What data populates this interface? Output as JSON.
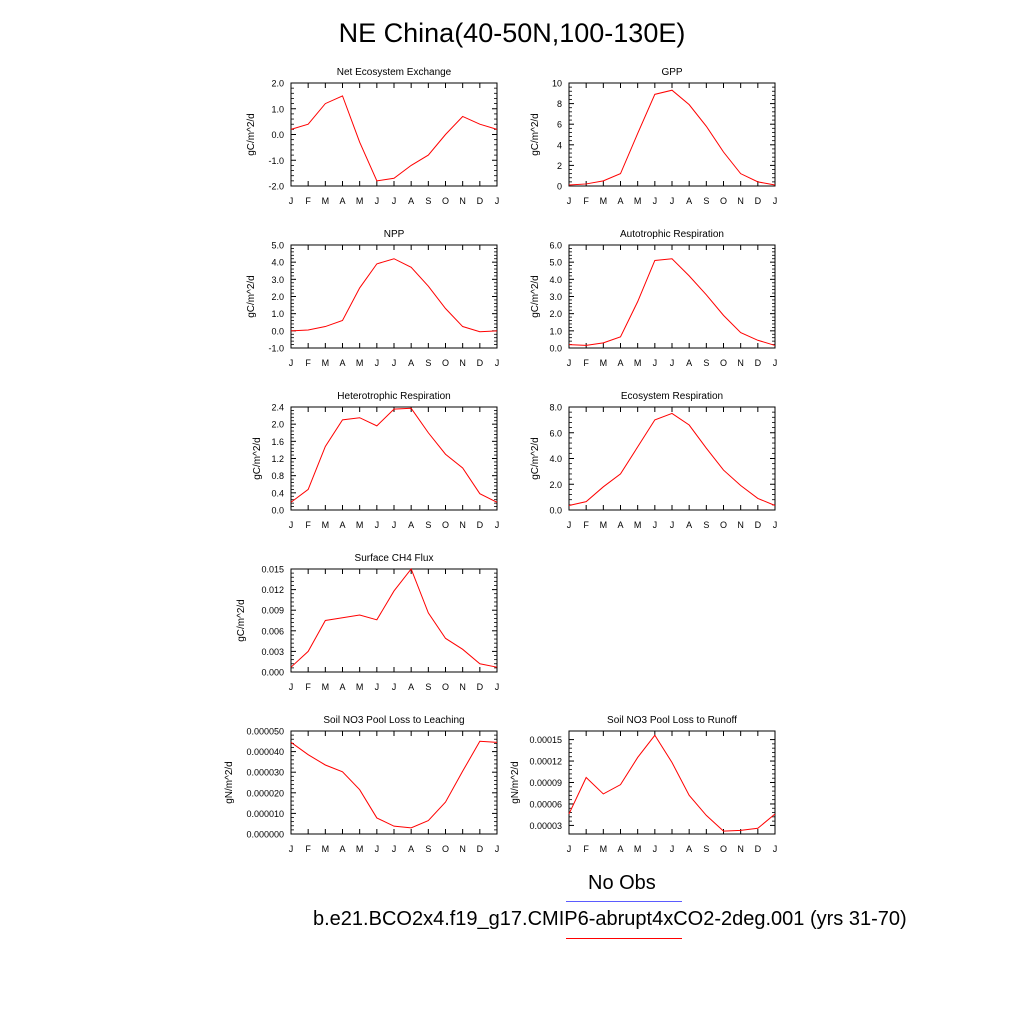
{
  "figure": {
    "title": "NE China(40-50N,100-130E)",
    "legend": [
      {
        "label": "No Obs",
        "color": "#5b5bff"
      },
      {
        "label": "b.e21.BCO2x4.f19_g17.CMIP6-abrupt4xCO2-2deg.001 (yrs 31-70)",
        "color": "#ff0000"
      }
    ],
    "series_color": "#ff0000"
  },
  "chart_data": [
    {
      "type": "line",
      "title": "Net Ecosystem Exchange",
      "ylabel": "gC/m^2/d",
      "categories": [
        "J",
        "F",
        "M",
        "A",
        "M",
        "J",
        "J",
        "A",
        "S",
        "O",
        "N",
        "D",
        "J"
      ],
      "ylim": [
        -2.0,
        2.0
      ],
      "yticks": [
        -2.0,
        -1.0,
        0.0,
        1.0,
        2.0
      ],
      "ytick_labels": [
        "-2.0",
        "-1.0",
        "0.0",
        "1.0",
        "2.0"
      ],
      "values": [
        0.2,
        0.4,
        1.2,
        1.5,
        -0.3,
        -1.8,
        -1.7,
        -1.2,
        -0.8,
        0.0,
        0.7,
        0.4,
        0.2
      ]
    },
    {
      "type": "line",
      "title": "GPP",
      "ylabel": "gC/m^2/d",
      "categories": [
        "J",
        "F",
        "M",
        "A",
        "M",
        "J",
        "J",
        "A",
        "S",
        "O",
        "N",
        "D",
        "J"
      ],
      "ylim": [
        0,
        10
      ],
      "yticks": [
        0,
        2,
        4,
        6,
        8,
        10
      ],
      "ytick_labels": [
        "0",
        "2",
        "4",
        "6",
        "8",
        "10"
      ],
      "values": [
        0.1,
        0.2,
        0.5,
        1.2,
        5.1,
        8.9,
        9.3,
        7.9,
        5.8,
        3.3,
        1.2,
        0.4,
        0.1
      ]
    },
    {
      "type": "line",
      "title": "NPP",
      "ylabel": "gC/m^2/d",
      "categories": [
        "J",
        "F",
        "M",
        "A",
        "M",
        "J",
        "J",
        "A",
        "S",
        "O",
        "N",
        "D",
        "J"
      ],
      "ylim": [
        -1.0,
        5.0
      ],
      "yticks": [
        -1.0,
        0.0,
        1.0,
        2.0,
        3.0,
        4.0,
        5.0
      ],
      "ytick_labels": [
        "-1.0",
        "0.0",
        "1.0",
        "2.0",
        "3.0",
        "4.0",
        "5.0"
      ],
      "values": [
        0.0,
        0.05,
        0.25,
        0.6,
        2.5,
        3.9,
        4.2,
        3.7,
        2.6,
        1.3,
        0.25,
        -0.05,
        0.0
      ]
    },
    {
      "type": "line",
      "title": "Autotrophic Respiration",
      "ylabel": "gC/m^2/d",
      "categories": [
        "J",
        "F",
        "M",
        "A",
        "M",
        "J",
        "J",
        "A",
        "S",
        "O",
        "N",
        "D",
        "J"
      ],
      "ylim": [
        0,
        6.0
      ],
      "yticks": [
        0,
        1.0,
        2.0,
        3.0,
        4.0,
        5.0,
        6.0
      ],
      "ytick_labels": [
        "0.0",
        "1.0",
        "2.0",
        "3.0",
        "4.0",
        "5.0",
        "6.0"
      ],
      "values": [
        0.2,
        0.15,
        0.3,
        0.65,
        2.7,
        5.1,
        5.2,
        4.2,
        3.1,
        1.9,
        0.9,
        0.45,
        0.15
      ]
    },
    {
      "type": "line",
      "title": "Heterotrophic Respiration",
      "ylabel": "gC/m^2/d",
      "categories": [
        "J",
        "F",
        "M",
        "A",
        "M",
        "J",
        "J",
        "A",
        "S",
        "O",
        "N",
        "D",
        "J"
      ],
      "ylim": [
        0,
        2.4
      ],
      "yticks": [
        0,
        0.4,
        0.8,
        1.2,
        1.6,
        2.0,
        2.4
      ],
      "ytick_labels": [
        "0.0",
        "0.4",
        "0.8",
        "1.2",
        "1.6",
        "2.0",
        "2.4"
      ],
      "values": [
        0.18,
        0.48,
        1.48,
        2.1,
        2.15,
        1.96,
        2.35,
        2.37,
        1.8,
        1.3,
        0.98,
        0.38,
        0.18
      ]
    },
    {
      "type": "line",
      "title": "Ecosystem Respiration",
      "ylabel": "gC/m^2/d",
      "categories": [
        "J",
        "F",
        "M",
        "A",
        "M",
        "J",
        "J",
        "A",
        "S",
        "O",
        "N",
        "D",
        "J"
      ],
      "ylim": [
        0,
        8.0
      ],
      "yticks": [
        0,
        2.0,
        4.0,
        6.0,
        8.0
      ],
      "ytick_labels": [
        "0.0",
        "2.0",
        "4.0",
        "6.0",
        "8.0"
      ],
      "values": [
        0.35,
        0.65,
        1.8,
        2.8,
        4.9,
        7.0,
        7.5,
        6.6,
        4.8,
        3.1,
        1.9,
        0.9,
        0.35
      ]
    },
    {
      "type": "line",
      "title": "Surface CH4 Flux",
      "ylabel": "gC/m^2/d",
      "categories": [
        "J",
        "F",
        "M",
        "A",
        "M",
        "J",
        "J",
        "A",
        "S",
        "O",
        "N",
        "D",
        "J"
      ],
      "ylim": [
        0,
        0.015
      ],
      "yticks": [
        0,
        0.003,
        0.006,
        0.009,
        0.012,
        0.015
      ],
      "ytick_labels": [
        "0.000",
        "0.003",
        "0.006",
        "0.009",
        "0.012",
        "0.015"
      ],
      "values": [
        0.0007,
        0.003,
        0.0075,
        0.0079,
        0.0083,
        0.0076,
        0.0118,
        0.015,
        0.0086,
        0.0049,
        0.0033,
        0.0012,
        0.0007
      ]
    },
    {
      "type": "line",
      "title": "Soil NO3 Pool Loss to Leaching",
      "ylabel": "gN/m^2/d",
      "categories": [
        "J",
        "F",
        "M",
        "A",
        "M",
        "J",
        "J",
        "A",
        "S",
        "O",
        "N",
        "D",
        "J"
      ],
      "ylim": [
        0,
        5e-05
      ],
      "yticks": [
        0,
        1e-05,
        2e-05,
        3e-05,
        4e-05,
        5e-05
      ],
      "ytick_labels": [
        "0.000000",
        "0.000010",
        "0.000020",
        "0.000030",
        "0.000040",
        "0.000050"
      ],
      "values": [
        4.45e-05,
        3.85e-05,
        3.35e-05,
        3.02e-05,
        2.15e-05,
        7.8e-06,
        3.8e-06,
        3e-06,
        6.5e-06,
        1.55e-05,
        3.05e-05,
        4.5e-05,
        4.45e-05
      ]
    },
    {
      "type": "line",
      "title": "Soil NO3 Pool Loss to Runoff",
      "ylabel": "gN/m^2/d",
      "categories": [
        "J",
        "F",
        "M",
        "A",
        "M",
        "J",
        "J",
        "A",
        "S",
        "O",
        "N",
        "D",
        "J"
      ],
      "ylim": [
        1.8e-05,
        0.000162
      ],
      "yticks": [
        3e-05,
        6e-05,
        9e-05,
        0.00012,
        0.00015
      ],
      "ytick_labels": [
        "0.00003",
        "0.00006",
        "0.00009",
        "0.00012",
        "0.00015"
      ],
      "values": [
        4.6e-05,
        9.7e-05,
        7.4e-05,
        8.7e-05,
        0.000125,
        0.000156,
        0.000118,
        7.2e-05,
        4.4e-05,
        2.2e-05,
        2.3e-05,
        2.6e-05,
        4.6e-05
      ]
    }
  ]
}
